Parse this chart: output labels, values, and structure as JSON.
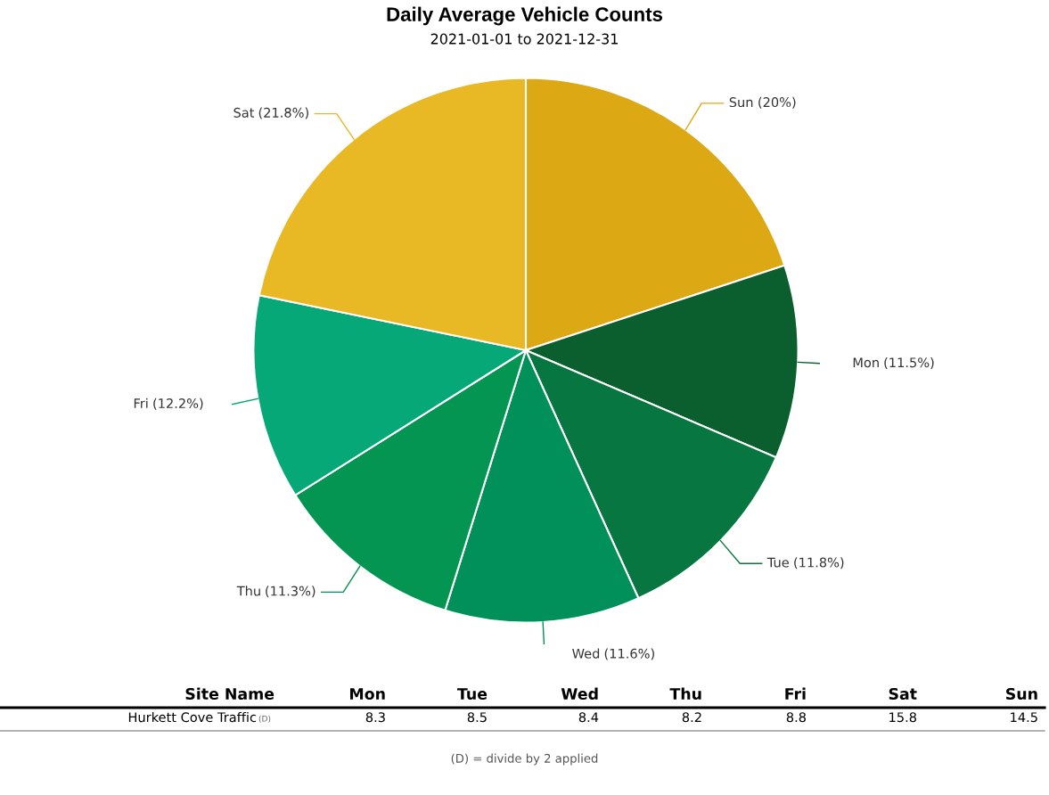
{
  "chart_data": [
    {
      "type": "pie",
      "title": "Daily Average Vehicle Counts",
      "subtitle": "2021-01-01 to 2021-12-31",
      "categories": [
        "Mon",
        "Tue",
        "Wed",
        "Thu",
        "Fri",
        "Sat",
        "Sun"
      ],
      "values": [
        11.5,
        11.8,
        11.6,
        11.3,
        12.2,
        21.8,
        20
      ],
      "colors": [
        "#0b5e2e",
        "#087640",
        "#01905a",
        "#049552",
        "#05a876",
        "#e9b825",
        "#dca914"
      ],
      "value_labels": [
        "(11.5%)",
        "(11.8%)",
        "(11.6%)",
        "(11.3%)",
        "(12.2%)",
        "(21.8%)",
        "(20%)"
      ]
    },
    {
      "type": "other",
      "categories": [
        "Mon",
        "Tue",
        "Wed",
        "Thu",
        "Fri",
        "Sat",
        "Sun"
      ],
      "values": [
        8.3,
        8.5,
        8.4,
        8.2,
        8.8,
        15.8,
        14.5
      ],
      "data_labels": true,
      "annotations": [
        "Site Name",
        "Hurkett Cove Traffic",
        "(D)",
        "(D) = divide by 2 applied"
      ]
    }
  ]
}
